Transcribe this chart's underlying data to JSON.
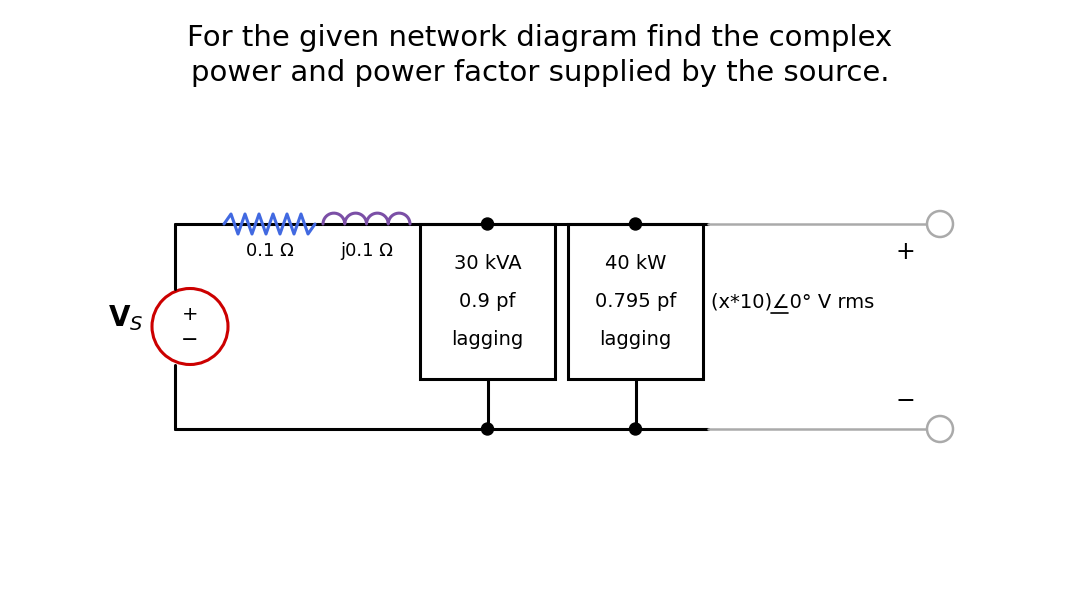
{
  "title_line1": "For the given network diagram find the complex",
  "title_line2": "power and power factor supplied by the source.",
  "title_fontsize": 21,
  "title_color": "#000000",
  "bg_color": "#ffffff",
  "circuit": {
    "vs_circle_color": "#cc0000",
    "vs_circle_lw": 2.2,
    "wire_color": "#000000",
    "wire_lw": 2.2,
    "resistor_color": "#4169e1",
    "inductor_color": "#7b4fa6",
    "box1_text": [
      "30 kVA",
      "0.9 pf",
      "lagging"
    ],
    "box2_text": [
      "40 kW",
      "0.795 pf",
      "lagging"
    ],
    "voltage_label_part1": "(x*10)",
    "voltage_label_angle": "∠0°",
    "voltage_label_part2": " V rms",
    "label_01_Omega": "0.1 Ω",
    "label_j01_Omega": "j0.1 Ω",
    "plus_sign": "+",
    "minus_sign": "−",
    "vs_label": "V",
    "vs_sub": "S"
  }
}
